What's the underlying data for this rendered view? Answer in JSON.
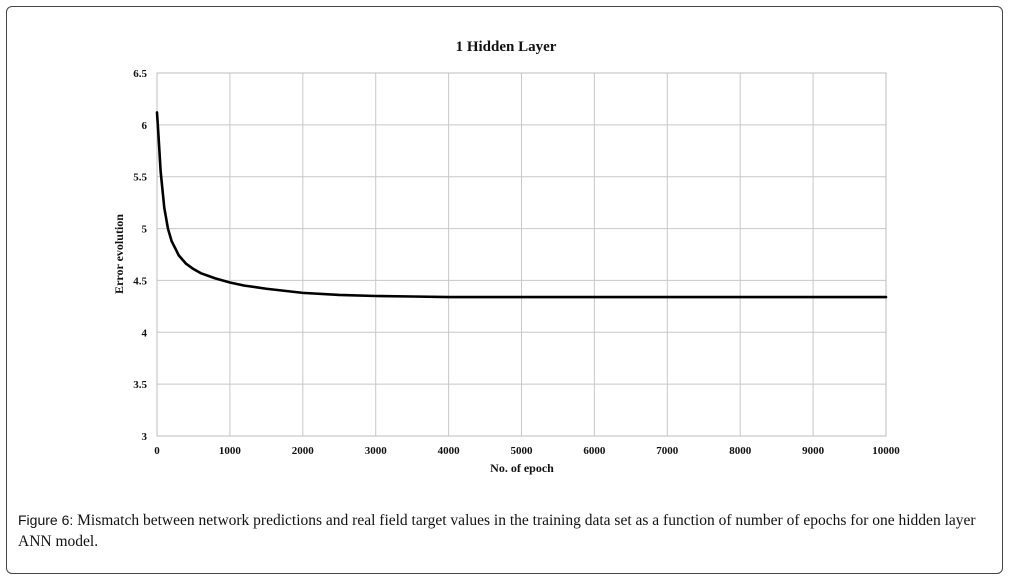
{
  "chart_data": {
    "type": "line",
    "title": "1 Hidden Layer",
    "xlabel": "No. of epoch",
    "ylabel": "Error evolution",
    "xlim": [
      0,
      10000
    ],
    "ylim": [
      3,
      6.5
    ],
    "xticks": [
      0,
      1000,
      2000,
      3000,
      4000,
      5000,
      6000,
      7000,
      8000,
      9000,
      10000
    ],
    "yticks": [
      3,
      3.5,
      4,
      4.5,
      5,
      5.5,
      6,
      6.5
    ],
    "ytick_labels": [
      "3",
      "3.5",
      "4",
      "4.5",
      "5",
      "5.5",
      "6",
      "6.5"
    ],
    "grid": true,
    "series": [
      {
        "name": "Error",
        "color": "#000000",
        "x": [
          0,
          20,
          50,
          100,
          150,
          200,
          300,
          400,
          500,
          600,
          800,
          1000,
          1200,
          1500,
          2000,
          2500,
          3000,
          3500,
          4000,
          5000,
          6000,
          7000,
          8000,
          9000,
          10000
        ],
        "y": [
          6.12,
          5.9,
          5.55,
          5.2,
          5.0,
          4.88,
          4.74,
          4.66,
          4.61,
          4.57,
          4.52,
          4.48,
          4.45,
          4.42,
          4.38,
          4.36,
          4.35,
          4.345,
          4.34,
          4.34,
          4.34,
          4.34,
          4.34,
          4.34,
          4.34
        ]
      }
    ]
  },
  "caption": {
    "label": "Figure 6:",
    "text": " Mismatch between network predictions and real field target values in the training data set as a function of number of epochs for one hidden layer ANN model."
  }
}
